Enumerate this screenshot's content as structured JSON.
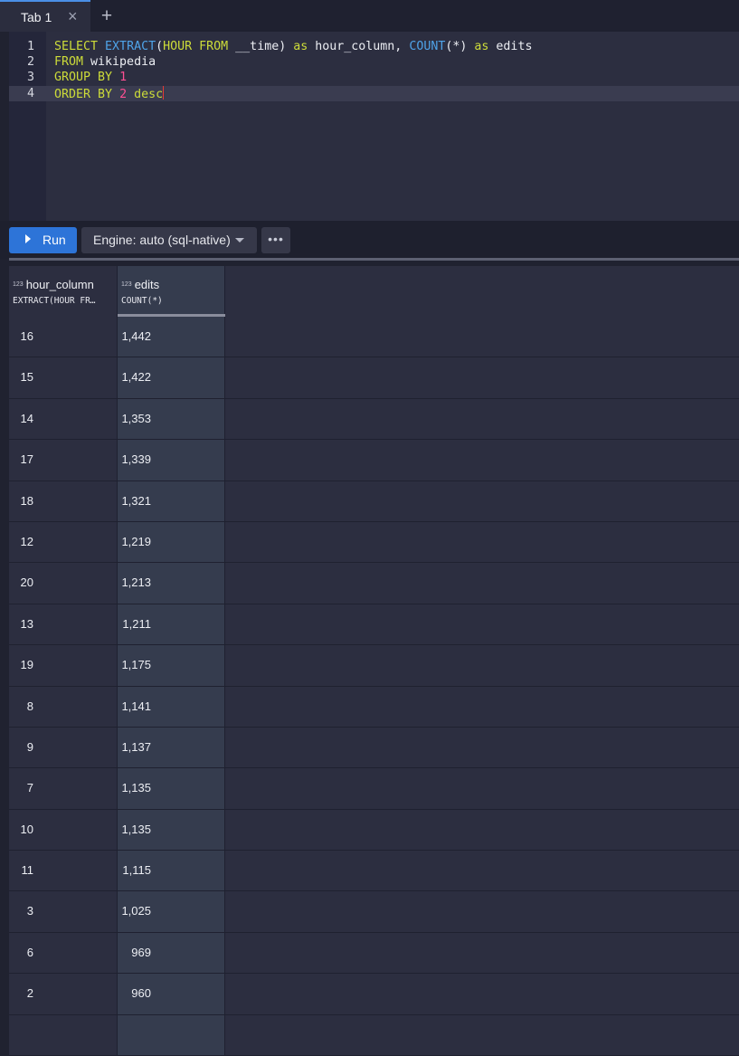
{
  "tabs": {
    "active_label": "Tab 1",
    "close_icon": "×",
    "add_icon": "+"
  },
  "editor": {
    "lines": [
      {
        "n": "1",
        "tokens": [
          [
            "kw",
            "SELECT "
          ],
          [
            "fn",
            "EXTRACT"
          ],
          [
            "id",
            "("
          ],
          [
            "kw",
            "HOUR FROM "
          ],
          [
            "id",
            "__time) "
          ],
          [
            "kw",
            "as "
          ],
          [
            "id",
            "hour_column, "
          ],
          [
            "fn",
            "COUNT"
          ],
          [
            "id",
            "(*) "
          ],
          [
            "kw",
            "as "
          ],
          [
            "id",
            "edits"
          ]
        ]
      },
      {
        "n": "2",
        "tokens": [
          [
            "kw",
            "FROM "
          ],
          [
            "id",
            "wikipedia"
          ]
        ]
      },
      {
        "n": "3",
        "tokens": [
          [
            "kw",
            "GROUP BY "
          ],
          [
            "num",
            "1"
          ]
        ]
      },
      {
        "n": "4",
        "tokens": [
          [
            "kw",
            "ORDER BY "
          ],
          [
            "num",
            "2 "
          ],
          [
            "kw",
            "desc"
          ]
        ]
      }
    ]
  },
  "toolbar": {
    "run_label": "Run",
    "engine_label": "Engine: auto (sql-native)",
    "more_label": "•••"
  },
  "columns": [
    {
      "badge": "123",
      "title": "hour_column",
      "sub": "EXTRACT(HOUR FR…"
    },
    {
      "badge": "123",
      "title": "edits",
      "sub": "COUNT(*)"
    }
  ],
  "rows": [
    [
      "16",
      "1,442"
    ],
    [
      "15",
      "1,422"
    ],
    [
      "14",
      "1,353"
    ],
    [
      "17",
      "1,339"
    ],
    [
      "18",
      "1,321"
    ],
    [
      "12",
      "1,219"
    ],
    [
      "20",
      "1,213"
    ],
    [
      "13",
      "1,211"
    ],
    [
      "19",
      "1,175"
    ],
    [
      "8",
      "1,141"
    ],
    [
      "9",
      "1,137"
    ],
    [
      "7",
      "1,135"
    ],
    [
      "10",
      "1,135"
    ],
    [
      "11",
      "1,115"
    ],
    [
      "3",
      "1,025"
    ],
    [
      "6",
      "969"
    ],
    [
      "2",
      "960"
    ],
    [
      "",
      ""
    ]
  ]
}
